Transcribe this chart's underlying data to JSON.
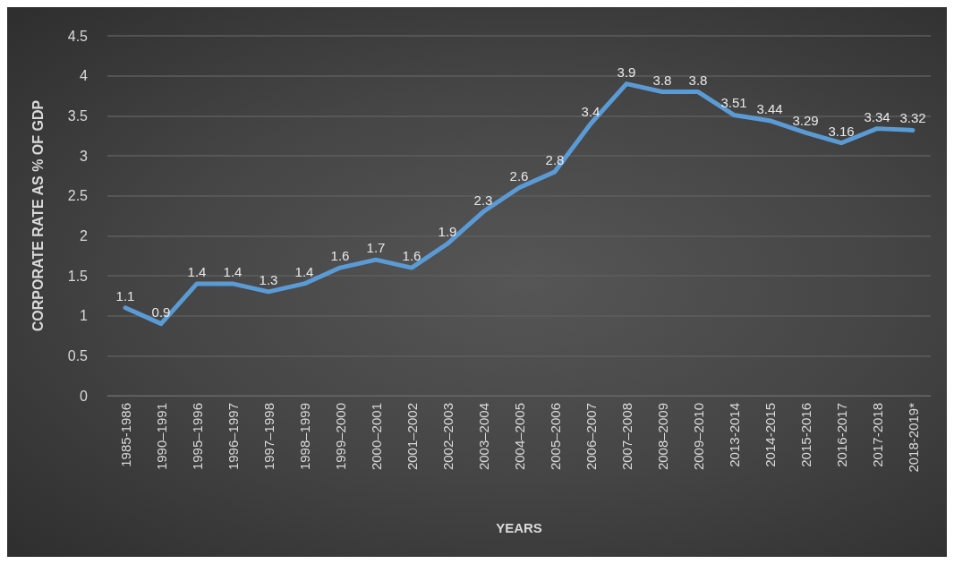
{
  "chart_data": {
    "type": "line",
    "xlabel": "YEARS",
    "ylabel": "CORPORATE RATE AS % OF GDP",
    "categories": [
      "1985-1986",
      "1990–1991",
      "1995–1996",
      "1996–1997",
      "1997–1998",
      "1998–1999",
      "1999–2000",
      "2000–2001",
      "2001–2002",
      "2002–2003",
      "2003–2004",
      "2004–2005",
      "2005–2006",
      "2006–2007",
      "2007–2008",
      "2008–2009",
      "2009–2010",
      "2013-2014",
      "2014-2015",
      "2015-2016",
      "2016-2017",
      "2017-2018",
      "2018-2019*"
    ],
    "series": [
      {
        "color": "#5b9bd5",
        "values": [
          1.1,
          0.9,
          1.4,
          1.4,
          1.3,
          1.4,
          1.6,
          1.7,
          1.6,
          1.9,
          2.3,
          2.6,
          2.8,
          3.4,
          3.9,
          3.8,
          3.8,
          3.51,
          3.44,
          3.29,
          3.16,
          3.34,
          3.32
        ]
      }
    ],
    "ylim": [
      0,
      4.5
    ],
    "yticks": [
      0,
      0.5,
      1,
      1.5,
      2,
      2.5,
      3,
      3.5,
      4,
      4.5
    ],
    "grid": "y",
    "data_labels": true,
    "marker": "none",
    "line_style": "solid"
  }
}
